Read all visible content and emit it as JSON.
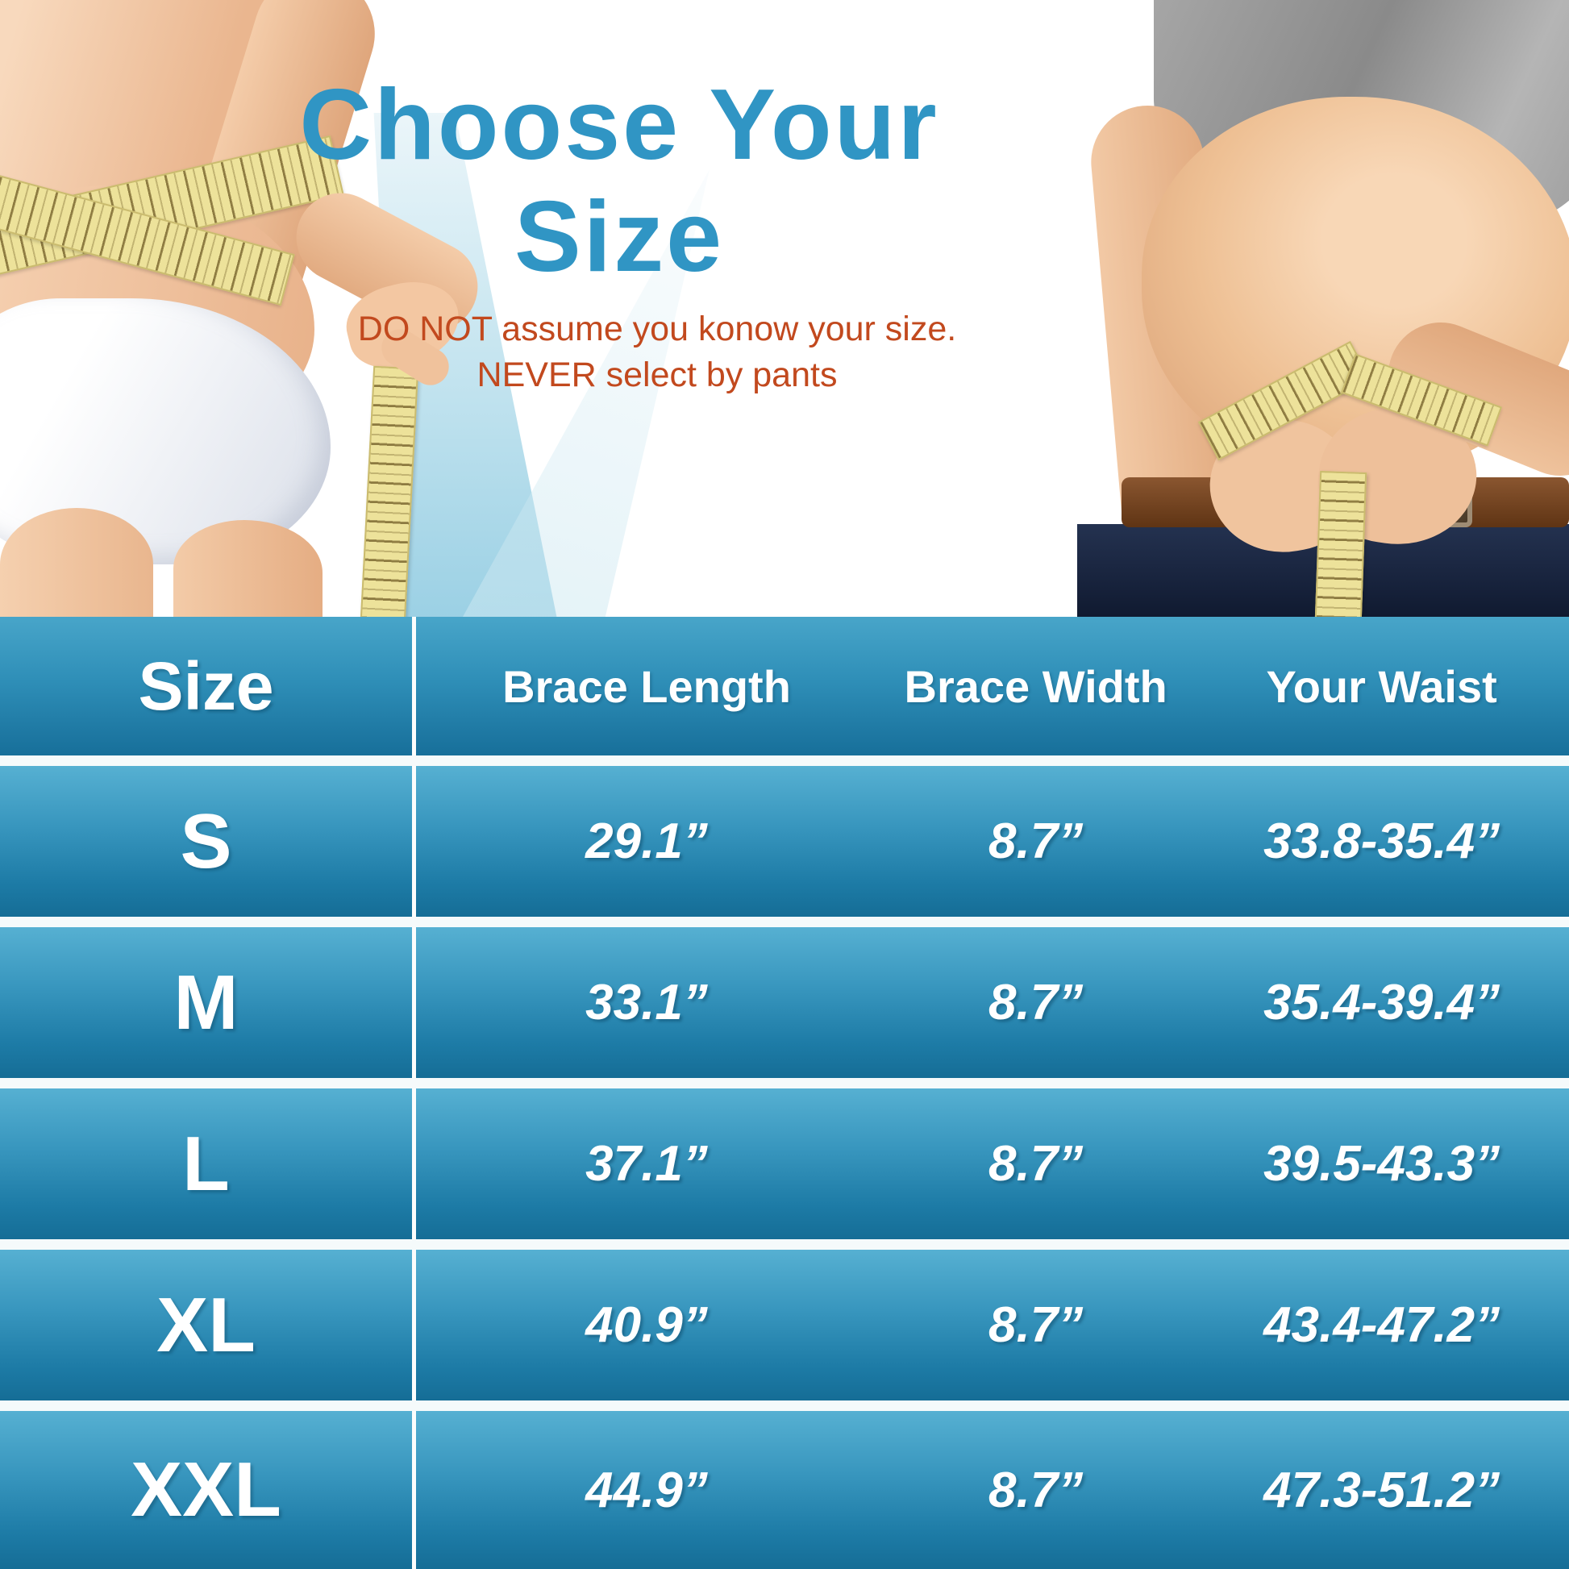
{
  "title": {
    "line1": "Choose Your",
    "line2": "Size"
  },
  "warning": {
    "line1": "DO NOT assume you konow your size.",
    "line2": "NEVER select by pants"
  },
  "table": {
    "headers": [
      "Size",
      "Brace Length",
      "Brace Width",
      "Your Waist"
    ],
    "rows": [
      {
        "size": "S",
        "brace_length": "29.1”",
        "brace_width": "8.7”",
        "your_waist": "33.8-35.4”"
      },
      {
        "size": "M",
        "brace_length": "33.1”",
        "brace_width": "8.7”",
        "your_waist": "35.4-39.4”"
      },
      {
        "size": "L",
        "brace_length": "37.1”",
        "brace_width": "8.7”",
        "your_waist": "39.5-43.3”"
      },
      {
        "size": "XL",
        "brace_length": "40.9”",
        "brace_width": "8.7”",
        "your_waist": "43.4-47.2”"
      },
      {
        "size": "XXL",
        "brace_length": "44.9”",
        "brace_width": "8.7”",
        "your_waist": "47.3-51.2”"
      }
    ]
  },
  "images": {
    "left_photo": "woman measuring waist with yellow tape",
    "right_photo": "man measuring belly with yellow tape"
  },
  "colors": {
    "title_blue": "#3095c4",
    "warning_orange": "#c2491e",
    "row_blue_top": "#56b0d2",
    "row_blue_bottom": "#156d96",
    "table_gap_white": "#f5fafb",
    "tape_yellow": "#ede29a"
  },
  "chart_data": {
    "type": "table",
    "title": "Choose Your Size",
    "notes": "DO NOT assume you konow your size. NEVER select by pants",
    "columns": [
      "Size",
      "Brace Length",
      "Brace Width",
      "Your Waist"
    ],
    "rows": [
      [
        "S",
        "29.1”",
        "8.7”",
        "33.8-35.4”"
      ],
      [
        "M",
        "33.1”",
        "8.7”",
        "35.4-39.4”"
      ],
      [
        "L",
        "37.1”",
        "8.7”",
        "39.5-43.3”"
      ],
      [
        "XL",
        "40.9”",
        "8.7”",
        "43.4-47.2”"
      ],
      [
        "XXL",
        "44.9”",
        "8.7”",
        "47.3-51.2”"
      ]
    ]
  }
}
